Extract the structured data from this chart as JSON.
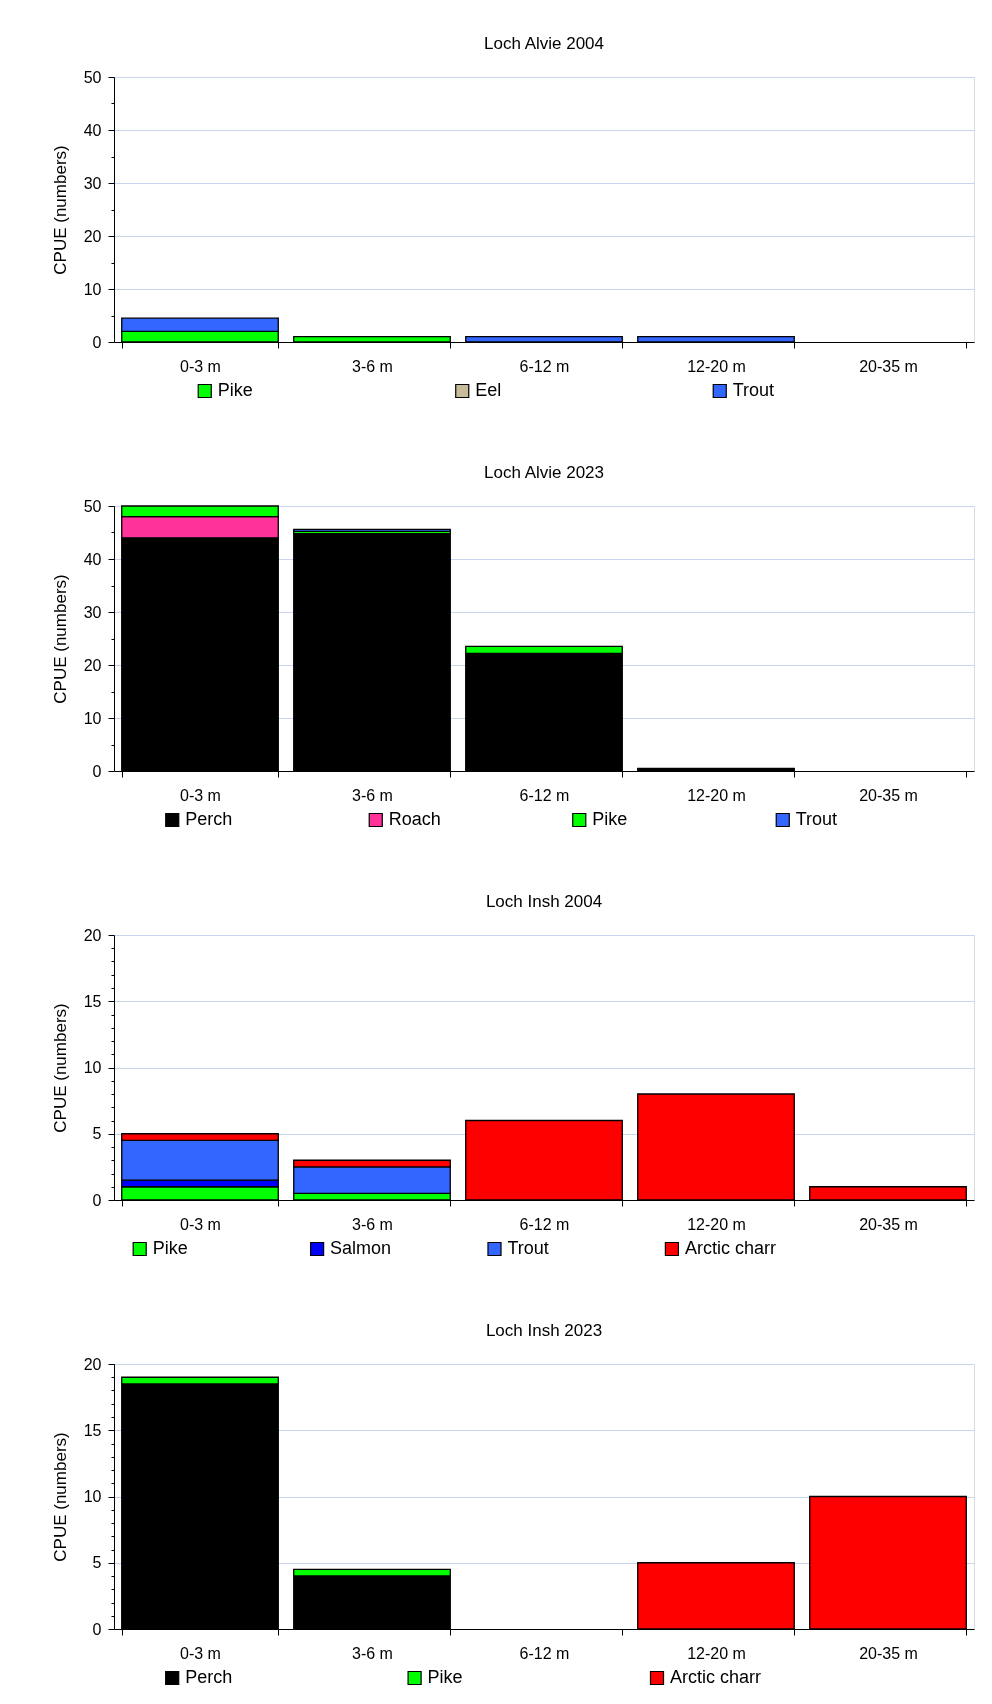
{
  "chart_data": [
    {
      "type": "bar",
      "title": "Loch Alvie 2004",
      "ylabel": "CPUE (numbers)",
      "categories": [
        "0-3 m",
        "3-6 m",
        "6-12 m",
        "12-20 m",
        "20-35 m"
      ],
      "stacked": true,
      "legend": "bottom",
      "grid": "y",
      "ylim": [
        0,
        50
      ],
      "yticks": [
        0,
        {
          "value": 5,
          "label": null
        },
        10,
        {
          "value": 15,
          "label": null
        },
        20,
        {
          "value": 25,
          "label": null
        },
        30,
        {
          "value": 35,
          "label": null
        },
        40,
        {
          "value": 45,
          "label": null
        },
        50
      ],
      "series": [
        {
          "name": "Pike",
          "color": "#00ff00",
          "values": [
            2,
            1,
            null,
            null,
            null
          ]
        },
        {
          "name": "Eel",
          "color": "#c8bc9c",
          "values": [
            null,
            null,
            null,
            null,
            null
          ]
        },
        {
          "name": "Trout",
          "color": "#3366ff",
          "values": [
            2.5,
            null,
            1,
            1,
            null
          ]
        }
      ]
    },
    {
      "type": "bar",
      "title": "Loch Alvie 2023",
      "ylabel": "CPUE (numbers)",
      "categories": [
        "0-3 m",
        "3-6 m",
        "6-12 m",
        "12-20 m",
        "20-35 m"
      ],
      "stacked": true,
      "legend": "bottom",
      "grid": "y",
      "ylim": [
        0,
        50
      ],
      "yticks": [
        0,
        {
          "value": 5,
          "label": null
        },
        10,
        {
          "value": 15,
          "label": null
        },
        20,
        {
          "value": 25,
          "label": null
        },
        30,
        {
          "value": 35,
          "label": null
        },
        40,
        {
          "value": 45,
          "label": null
        },
        50
      ],
      "series": [
        {
          "name": "Perch",
          "color": "#000000",
          "values": [
            44,
            44.8,
            22.2,
            0.5,
            null
          ]
        },
        {
          "name": "Roach",
          "color": "#ff3399",
          "values": [
            4,
            null,
            null,
            null,
            null
          ]
        },
        {
          "name": "Pike",
          "color": "#00ff00",
          "values": [
            2,
            0.4,
            1.3,
            null,
            null
          ]
        },
        {
          "name": "Trout",
          "color": "#3366ff",
          "values": [
            null,
            0.4,
            null,
            null,
            null
          ]
        }
      ]
    },
    {
      "type": "bar",
      "title": "Loch Insh 2004",
      "ylabel": "CPUE (numbers)",
      "categories": [
        "0-3 m",
        "3-6 m",
        "6-12 m",
        "12-20 m",
        "20-35 m"
      ],
      "stacked": true,
      "legend": "bottom",
      "grid": "y",
      "ylim": [
        0,
        20
      ],
      "yticks": [
        0,
        {
          "value": 1,
          "label": null
        },
        {
          "value": 2,
          "label": null
        },
        {
          "value": 3,
          "label": null
        },
        {
          "value": 4,
          "label": null
        },
        5,
        {
          "value": 6,
          "label": null
        },
        {
          "value": 7,
          "label": null
        },
        {
          "value": 8,
          "label": null
        },
        {
          "value": 9,
          "label": null
        },
        10,
        {
          "value": 11,
          "label": null
        },
        {
          "value": 12,
          "label": null
        },
        {
          "value": 13,
          "label": null
        },
        {
          "value": 14,
          "label": null
        },
        15,
        {
          "value": 16,
          "label": null
        },
        {
          "value": 17,
          "label": null
        },
        {
          "value": 18,
          "label": null
        },
        {
          "value": 19,
          "label": null
        },
        20
      ],
      "series": [
        {
          "name": "Pike",
          "color": "#00ff00",
          "values": [
            1,
            0.5,
            null,
            null,
            null
          ]
        },
        {
          "name": "Salmon",
          "color": "#0000ff",
          "values": [
            0.5,
            null,
            null,
            null,
            null
          ]
        },
        {
          "name": "Trout",
          "color": "#3366ff",
          "values": [
            3,
            2,
            null,
            null,
            null
          ]
        },
        {
          "name": "Arctic charr",
          "color": "#ff0000",
          "values": [
            0.5,
            0.5,
            6,
            8,
            1
          ]
        }
      ]
    },
    {
      "type": "bar",
      "title": "Loch Insh 2023",
      "ylabel": "CPUE (numbers)",
      "categories": [
        "0-3 m",
        "3-6 m",
        "6-12 m",
        "12-20 m",
        "20-35 m"
      ],
      "stacked": true,
      "legend": "bottom",
      "grid": "y",
      "ylim": [
        0,
        20
      ],
      "yticks": [
        0,
        {
          "value": 1,
          "label": null
        },
        {
          "value": 2,
          "label": null
        },
        {
          "value": 3,
          "label": null
        },
        {
          "value": 4,
          "label": null
        },
        5,
        {
          "value": 6,
          "label": null
        },
        {
          "value": 7,
          "label": null
        },
        {
          "value": 8,
          "label": null
        },
        {
          "value": 9,
          "label": null
        },
        10,
        {
          "value": 11,
          "label": null
        },
        {
          "value": 12,
          "label": null
        },
        {
          "value": 13,
          "label": null
        },
        {
          "value": 14,
          "label": null
        },
        15,
        {
          "value": 16,
          "label": null
        },
        {
          "value": 17,
          "label": null
        },
        {
          "value": 18,
          "label": null
        },
        {
          "value": 19,
          "label": null
        },
        20
      ],
      "series": [
        {
          "name": "Perch",
          "color": "#000000",
          "values": [
            18.5,
            4,
            null,
            null,
            null
          ]
        },
        {
          "name": "Pike",
          "color": "#00ff00",
          "values": [
            0.5,
            0.5,
            null,
            null,
            null
          ]
        },
        {
          "name": "Arctic charr",
          "color": "#ff0000",
          "values": [
            null,
            null,
            null,
            5,
            10
          ]
        }
      ]
    }
  ]
}
